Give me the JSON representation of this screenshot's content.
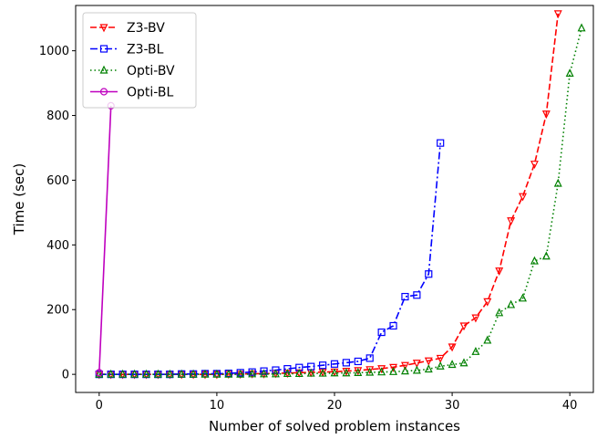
{
  "chart_data": {
    "type": "line",
    "title": "",
    "xlabel": "Number of solved problem instances",
    "ylabel": "Time (sec)",
    "xlim": [
      -2,
      42
    ],
    "ylim": [
      -56,
      1140
    ],
    "xticks": [
      0,
      10,
      20,
      30,
      40
    ],
    "yticks": [
      0,
      200,
      400,
      600,
      800,
      1000
    ],
    "grid": false,
    "legend_position": "top-left",
    "series": [
      {
        "name": "Z3-BV",
        "color": "#ff0000",
        "linestyle": "dashed",
        "marker": "triangle-down",
        "x": [
          0,
          1,
          2,
          3,
          4,
          5,
          6,
          7,
          8,
          9,
          10,
          11,
          12,
          13,
          14,
          15,
          16,
          17,
          18,
          19,
          20,
          21,
          22,
          23,
          24,
          25,
          26,
          27,
          28,
          29,
          30,
          31,
          32,
          33,
          34,
          35,
          36,
          37,
          38,
          39
        ],
        "y": [
          0,
          0,
          0,
          0,
          0,
          0,
          0,
          0,
          0,
          0,
          0,
          1,
          1,
          2,
          2,
          3,
          4,
          5,
          6,
          7,
          8,
          10,
          12,
          15,
          18,
          22,
          28,
          35,
          42,
          50,
          85,
          150,
          175,
          225,
          320,
          475,
          550,
          650,
          805,
          1115
        ]
      },
      {
        "name": "Z3-BL",
        "color": "#0000ff",
        "linestyle": "dashdot",
        "marker": "square",
        "x": [
          0,
          1,
          2,
          3,
          4,
          5,
          6,
          7,
          8,
          9,
          10,
          11,
          12,
          13,
          14,
          15,
          16,
          17,
          18,
          19,
          20,
          21,
          22,
          23,
          24,
          25,
          26,
          27,
          28,
          29
        ],
        "y": [
          0,
          0,
          0,
          0,
          0,
          0,
          0,
          1,
          1,
          2,
          2,
          3,
          5,
          7,
          10,
          13,
          17,
          21,
          24,
          28,
          32,
          36,
          40,
          50,
          130,
          150,
          240,
          245,
          310,
          715
        ]
      },
      {
        "name": "Opti-BV",
        "color": "#008000",
        "linestyle": "dotted",
        "marker": "triangle-up",
        "x": [
          0,
          1,
          2,
          3,
          4,
          5,
          6,
          7,
          8,
          9,
          10,
          11,
          12,
          13,
          14,
          15,
          16,
          17,
          18,
          19,
          20,
          21,
          22,
          23,
          24,
          25,
          26,
          27,
          28,
          29,
          30,
          31,
          32,
          33,
          34,
          35,
          36,
          37,
          38,
          39,
          40,
          41
        ],
        "y": [
          0,
          0,
          0,
          0,
          0,
          0,
          0,
          0,
          0,
          0,
          0,
          0,
          0,
          1,
          1,
          1,
          2,
          2,
          3,
          3,
          4,
          4,
          5,
          6,
          7,
          8,
          10,
          12,
          16,
          25,
          30,
          35,
          70,
          105,
          190,
          215,
          235,
          350,
          365,
          590,
          930,
          1070
        ]
      },
      {
        "name": "Opti-BL",
        "color": "#bf00bf",
        "linestyle": "solid",
        "marker": "circle",
        "x": [
          0,
          1
        ],
        "y": [
          5,
          830
        ]
      }
    ]
  }
}
